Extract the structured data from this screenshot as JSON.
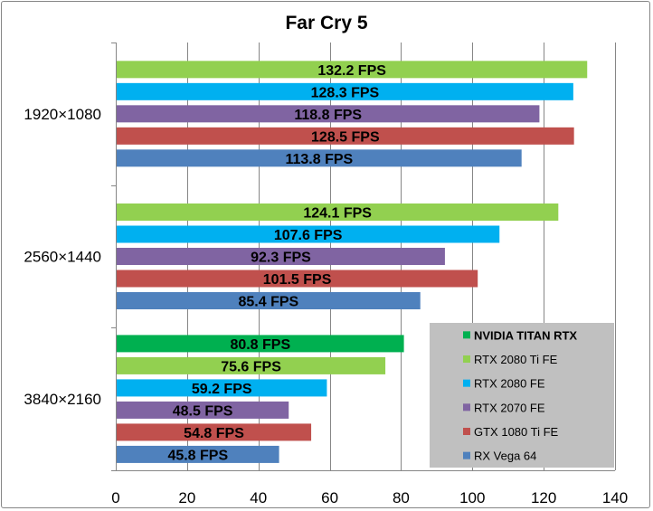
{
  "chart_data": {
    "type": "bar",
    "orientation": "horizontal",
    "title": "Far Cry 5",
    "xlabel": "",
    "ylabel": "",
    "xlim": [
      0,
      140
    ],
    "xticks": [
      0,
      20,
      40,
      60,
      80,
      100,
      120,
      140
    ],
    "categories": [
      "1920×1080",
      "2560×1440",
      "3840×2160"
    ],
    "value_suffix": " FPS",
    "legend_position": "bottom-right",
    "series": [
      {
        "name": "NVIDIA TITAN RTX",
        "color": "#00b050",
        "bold": true,
        "values": [
          null,
          null,
          80.8
        ]
      },
      {
        "name": "RTX 2080 Ti FE",
        "color": "#92d050",
        "bold": false,
        "values": [
          132.2,
          124.1,
          75.6
        ]
      },
      {
        "name": "RTX 2080 FE",
        "color": "#00b0f0",
        "bold": false,
        "values": [
          128.3,
          107.6,
          59.2
        ]
      },
      {
        "name": "RTX 2070 FE",
        "color": "#8064a2",
        "bold": false,
        "values": [
          118.8,
          92.3,
          48.5
        ]
      },
      {
        "name": "GTX 1080 Ti FE",
        "color": "#c0504d",
        "bold": false,
        "values": [
          128.5,
          101.5,
          54.8
        ]
      },
      {
        "name": "RX Vega 64",
        "color": "#4f81bd",
        "bold": false,
        "values": [
          113.8,
          85.4,
          45.8
        ]
      }
    ]
  }
}
